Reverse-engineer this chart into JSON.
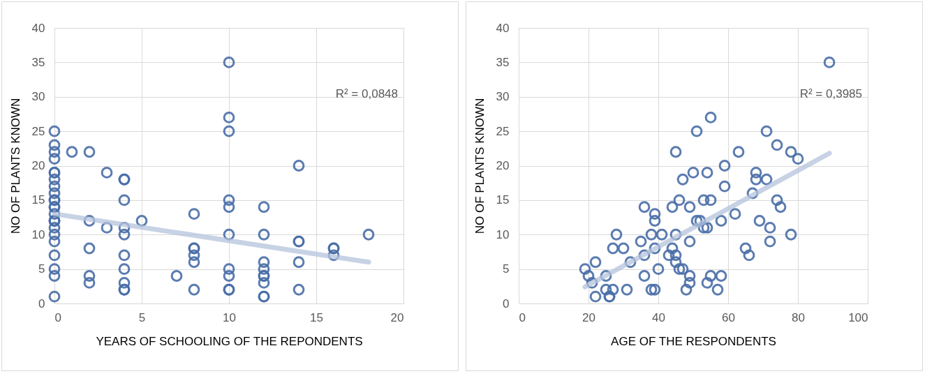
{
  "chart_data": [
    {
      "type": "scatter",
      "xlabel": "YEARS OF SCHOOLING OF THE REPONDENTS",
      "ylabel": "NO OF PLANTS KNOWN",
      "xlim": [
        0,
        20
      ],
      "xticks": [
        0,
        5,
        10,
        15,
        20
      ],
      "ylim": [
        0,
        40
      ],
      "yticks": [
        0,
        5,
        10,
        15,
        20,
        25,
        30,
        35,
        40
      ],
      "grid": true,
      "series": [
        {
          "marker": "circle",
          "color": "#4a6ea8",
          "x": [
            0,
            0,
            0,
            0,
            0,
            0,
            0,
            0,
            0,
            0,
            0,
            0,
            0,
            0,
            0,
            0,
            0,
            0,
            0,
            0,
            0,
            0,
            0,
            0,
            1,
            2,
            2,
            2,
            2,
            2,
            3,
            3,
            4,
            4,
            4,
            4,
            4,
            4,
            4,
            4,
            4,
            4,
            5,
            7,
            8,
            8,
            8,
            8,
            8,
            8,
            10,
            10,
            10,
            10,
            10,
            10,
            10,
            10,
            10,
            10,
            12,
            12,
            12,
            12,
            12,
            12,
            12,
            12,
            12,
            14,
            14,
            14,
            14,
            14,
            16,
            16,
            16,
            18
          ],
          "values": [
            25,
            23,
            22,
            21,
            19,
            19,
            18,
            17,
            16,
            15,
            15,
            14,
            14,
            13,
            12,
            12,
            12,
            11,
            10,
            9,
            7,
            5,
            4,
            1,
            22,
            22,
            12,
            8,
            4,
            3,
            19,
            11,
            18,
            18,
            15,
            11,
            10,
            7,
            5,
            3,
            2,
            2,
            12,
            4,
            13,
            8,
            8,
            7,
            6,
            2,
            35,
            27,
            25,
            15,
            14,
            10,
            5,
            4,
            2,
            2,
            14,
            10,
            6,
            5,
            4,
            4,
            3,
            1,
            1,
            20,
            9,
            9,
            6,
            2,
            8,
            8,
            7,
            10
          ]
        },
        {
          "type": "line",
          "color": "#b4c3dc",
          "x": [
            0,
            18
          ],
          "values": [
            13.0,
            6.0
          ]
        }
      ],
      "annotations": [
        "R² = 0,0848"
      ]
    },
    {
      "type": "scatter",
      "xlabel": "AGE OF THE RESPONDENTS",
      "ylabel": "NO OF PLANTS KNOWN",
      "xlim": [
        0,
        100
      ],
      "xticks": [
        0,
        20,
        40,
        60,
        80,
        100
      ],
      "ylim": [
        0,
        40
      ],
      "yticks": [
        0,
        5,
        10,
        15,
        20,
        25,
        30,
        35,
        40
      ],
      "grid": true,
      "series": [
        {
          "marker": "circle",
          "color": "#4a6ea8",
          "x": [
            19,
            20,
            21,
            22,
            22,
            25,
            25,
            26,
            26,
            27,
            27,
            28,
            30,
            31,
            32,
            35,
            36,
            36,
            36,
            38,
            38,
            39,
            39,
            39,
            39,
            40,
            41,
            43,
            44,
            44,
            45,
            45,
            45,
            45,
            46,
            46,
            47,
            47,
            48,
            49,
            49,
            49,
            49,
            50,
            51,
            51,
            52,
            53,
            53,
            54,
            54,
            54,
            55,
            55,
            55,
            57,
            58,
            58,
            59,
            59,
            62,
            63,
            65,
            66,
            67,
            68,
            68,
            69,
            71,
            71,
            72,
            72,
            74,
            74,
            75,
            78,
            78,
            80,
            89
          ],
          "values": [
            5,
            4,
            3,
            6,
            1,
            2,
            4,
            1,
            1,
            8,
            2,
            10,
            8,
            2,
            6,
            9,
            14,
            7,
            4,
            10,
            2,
            13,
            12,
            8,
            2,
            5,
            10,
            7,
            14,
            8,
            22,
            10,
            7,
            6,
            15,
            5,
            18,
            5,
            2,
            14,
            9,
            4,
            3,
            19,
            25,
            12,
            12,
            15,
            11,
            19,
            11,
            3,
            27,
            15,
            4,
            2,
            12,
            4,
            20,
            17,
            13,
            22,
            8,
            7,
            16,
            19,
            18,
            12,
            25,
            18,
            11,
            9,
            23,
            15,
            14,
            22,
            10,
            21,
            35
          ]
        },
        {
          "type": "line",
          "color": "#b4c3dc",
          "x": [
            19,
            89
          ],
          "values": [
            2.4,
            21.8
          ]
        }
      ],
      "annotations": [
        "R² = 0,3985"
      ]
    }
  ]
}
